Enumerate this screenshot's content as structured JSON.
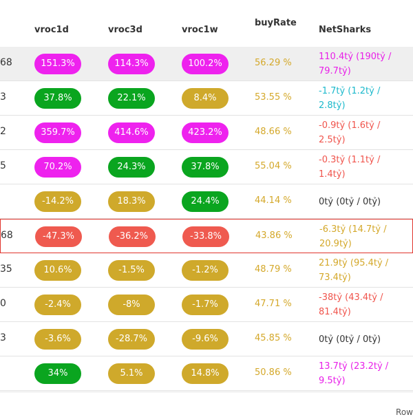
{
  "header": {
    "col_vroc1d": "vroc1d",
    "col_vroc3d": "vroc3d",
    "col_vroc1w": "vroc1w",
    "col_buyrate": "buyRate",
    "col_netsharks": "NetSharks"
  },
  "rows": [
    {
      "lead": "68",
      "v1d": "151.3%",
      "v3d": "114.3%",
      "v1w": "100.2%",
      "buyRate": "56.29 %",
      "netSharks": "110.4tỷ (190tỷ / 79.7tỷ)"
    },
    {
      "lead": "3",
      "v1d": "37.8%",
      "v3d": "22.1%",
      "v1w": "8.4%",
      "buyRate": "53.55 %",
      "netSharks": "-1.7tỷ (1.2tỷ / 2.8tỷ)"
    },
    {
      "lead": "2",
      "v1d": "359.7%",
      "v3d": "414.6%",
      "v1w": "423.2%",
      "buyRate": "48.66 %",
      "netSharks": "-0.9tỷ (1.6tỷ / 2.5tỷ)"
    },
    {
      "lead": "5",
      "v1d": "70.2%",
      "v3d": "24.3%",
      "v1w": "37.8%",
      "buyRate": "55.04 %",
      "netSharks": "-0.3tỷ (1.1tỷ / 1.4tỷ)"
    },
    {
      "lead": "",
      "v1d": "-14.2%",
      "v3d": "18.3%",
      "v1w": "24.4%",
      "buyRate": "44.14 %",
      "netSharks": "0tỷ (0tỷ / 0tỷ)"
    },
    {
      "lead": "68",
      "v1d": "-47.3%",
      "v3d": "-36.2%",
      "v1w": "-33.8%",
      "buyRate": "43.86 %",
      "netSharks": "-6.3tỷ (14.7tỷ / 20.9tỷ)"
    },
    {
      "lead": "35",
      "v1d": "10.6%",
      "v3d": "-1.5%",
      "v1w": "-1.2%",
      "buyRate": "48.79 %",
      "netSharks": "21.9tỷ (95.4tỷ / 73.4tỷ)"
    },
    {
      "lead": "0",
      "v1d": "-2.4%",
      "v3d": "-8%",
      "v1w": "-1.7%",
      "buyRate": "47.71 %",
      "netSharks": "-38tỷ (43.4tỷ / 81.4tỷ)"
    },
    {
      "lead": "3",
      "v1d": "-3.6%",
      "v3d": "-28.7%",
      "v1w": "-9.6%",
      "buyRate": "45.85 %",
      "netSharks": "0tỷ (0tỷ / 0tỷ)"
    },
    {
      "lead": "",
      "v1d": "34%",
      "v3d": "5.1%",
      "v1w": "14.8%",
      "buyRate": "50.86 %",
      "netSharks": "13.7tỷ (23.2tỷ / 9.5tỷ)"
    }
  ],
  "colors": {
    "magenta": "#ee22ee",
    "green": "#0aa51f",
    "gold": "#cfa92b",
    "red": "#ef5a4f",
    "selected_border": "#e0342c"
  },
  "footer": {
    "text": "Row"
  }
}
